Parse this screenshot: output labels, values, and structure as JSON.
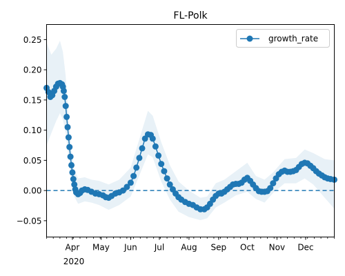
{
  "chart_data": {
    "type": "line",
    "title": "FL-Polk",
    "xlabel": "",
    "ylabel": "",
    "xlim": [
      "2020-03-05",
      "2020-12-31"
    ],
    "ylim": [
      -0.077,
      0.275
    ],
    "year_label": "2020",
    "x_ticks": [
      {
        "date": "2020-04-01",
        "label": "Apr"
      },
      {
        "date": "2020-05-01",
        "label": "May"
      },
      {
        "date": "2020-06-01",
        "label": "Jun"
      },
      {
        "date": "2020-07-01",
        "label": "Jul"
      },
      {
        "date": "2020-08-01",
        "label": "Aug"
      },
      {
        "date": "2020-09-01",
        "label": "Sep"
      },
      {
        "date": "2020-10-01",
        "label": "Oct"
      },
      {
        "date": "2020-11-01",
        "label": "Nov"
      },
      {
        "date": "2020-12-01",
        "label": "Dec"
      }
    ],
    "y_ticks": [
      0.25,
      0.2,
      0.15,
      0.1,
      0.05,
      0.0,
      -0.05
    ],
    "y_tick_labels": [
      "0.25",
      "0.20",
      "0.15",
      "0.10",
      "0.05",
      "0.00",
      "−0.05"
    ],
    "reference_line": {
      "y": 0.0,
      "style": "dashed",
      "color": "#1f77b4"
    },
    "legend": {
      "position": "top-right",
      "entries": [
        "growth_rate"
      ]
    },
    "series": [
      {
        "name": "growth_rate",
        "color": "#1f77b4",
        "marker": "circle",
        "points": [
          [
            "2020-03-05",
            0.17
          ],
          [
            "2020-03-07",
            0.163
          ],
          [
            "2020-03-09",
            0.155
          ],
          [
            "2020-03-11",
            0.158
          ],
          [
            "2020-03-13",
            0.165
          ],
          [
            "2020-03-15",
            0.172
          ],
          [
            "2020-03-17",
            0.177
          ],
          [
            "2020-03-19",
            0.178
          ],
          [
            "2020-03-21",
            0.176
          ],
          [
            "2020-03-22",
            0.172
          ],
          [
            "2020-03-23",
            0.165
          ],
          [
            "2020-03-24",
            0.155
          ],
          [
            "2020-03-25",
            0.14
          ],
          [
            "2020-03-26",
            0.122
          ],
          [
            "2020-03-27",
            0.105
          ],
          [
            "2020-03-28",
            0.088
          ],
          [
            "2020-03-29",
            0.072
          ],
          [
            "2020-03-30",
            0.056
          ],
          [
            "2020-03-31",
            0.042
          ],
          [
            "2020-04-01",
            0.03
          ],
          [
            "2020-04-02",
            0.019
          ],
          [
            "2020-04-03",
            0.01
          ],
          [
            "2020-04-04",
            0.002
          ],
          [
            "2020-04-05",
            -0.003
          ],
          [
            "2020-04-07",
            -0.006
          ],
          [
            "2020-04-09",
            -0.004
          ],
          [
            "2020-04-11",
            0.0
          ],
          [
            "2020-04-14",
            0.002
          ],
          [
            "2020-04-17",
            0.001
          ],
          [
            "2020-04-21",
            -0.002
          ],
          [
            "2020-04-25",
            -0.005
          ],
          [
            "2020-04-29",
            -0.006
          ],
          [
            "2020-05-03",
            -0.008
          ],
          [
            "2020-05-06",
            -0.011
          ],
          [
            "2020-05-09",
            -0.012
          ],
          [
            "2020-05-12",
            -0.009
          ],
          [
            "2020-05-16",
            -0.005
          ],
          [
            "2020-05-20",
            -0.003
          ],
          [
            "2020-05-24",
            0.0
          ],
          [
            "2020-05-28",
            0.006
          ],
          [
            "2020-06-01",
            0.013
          ],
          [
            "2020-06-04",
            0.024
          ],
          [
            "2020-06-07",
            0.038
          ],
          [
            "2020-06-10",
            0.054
          ],
          [
            "2020-06-13",
            0.07
          ],
          [
            "2020-06-16",
            0.086
          ],
          [
            "2020-06-19",
            0.093
          ],
          [
            "2020-06-22",
            0.092
          ],
          [
            "2020-06-24",
            0.086
          ],
          [
            "2020-06-27",
            0.073
          ],
          [
            "2020-06-30",
            0.058
          ],
          [
            "2020-07-03",
            0.044
          ],
          [
            "2020-07-06",
            0.032
          ],
          [
            "2020-07-09",
            0.02
          ],
          [
            "2020-07-12",
            0.01
          ],
          [
            "2020-07-15",
            0.002
          ],
          [
            "2020-07-18",
            -0.005
          ],
          [
            "2020-07-21",
            -0.011
          ],
          [
            "2020-07-24",
            -0.015
          ],
          [
            "2020-07-28",
            -0.019
          ],
          [
            "2020-08-01",
            -0.022
          ],
          [
            "2020-08-05",
            -0.024
          ],
          [
            "2020-08-09",
            -0.028
          ],
          [
            "2020-08-13",
            -0.031
          ],
          [
            "2020-08-17",
            -0.031
          ],
          [
            "2020-08-20",
            -0.028
          ],
          [
            "2020-08-23",
            -0.022
          ],
          [
            "2020-08-26",
            -0.015
          ],
          [
            "2020-08-29",
            -0.009
          ],
          [
            "2020-09-01",
            -0.005
          ],
          [
            "2020-09-04",
            -0.005
          ],
          [
            "2020-09-07",
            -0.002
          ],
          [
            "2020-09-10",
            0.002
          ],
          [
            "2020-09-13",
            0.006
          ],
          [
            "2020-09-16",
            0.01
          ],
          [
            "2020-09-19",
            0.011
          ],
          [
            "2020-09-22",
            0.011
          ],
          [
            "2020-09-25",
            0.013
          ],
          [
            "2020-09-28",
            0.018
          ],
          [
            "2020-10-01",
            0.021
          ],
          [
            "2020-10-04",
            0.016
          ],
          [
            "2020-10-07",
            0.01
          ],
          [
            "2020-10-10",
            0.004
          ],
          [
            "2020-10-13",
            -0.001
          ],
          [
            "2020-10-16",
            -0.002
          ],
          [
            "2020-10-19",
            -0.002
          ],
          [
            "2020-10-22",
            -0.001
          ],
          [
            "2020-10-25",
            0.004
          ],
          [
            "2020-10-28",
            0.012
          ],
          [
            "2020-10-31",
            0.02
          ],
          [
            "2020-11-03",
            0.027
          ],
          [
            "2020-11-06",
            0.031
          ],
          [
            "2020-11-09",
            0.033
          ],
          [
            "2020-11-12",
            0.031
          ],
          [
            "2020-11-15",
            0.031
          ],
          [
            "2020-11-18",
            0.032
          ],
          [
            "2020-11-21",
            0.034
          ],
          [
            "2020-11-24",
            0.039
          ],
          [
            "2020-11-27",
            0.044
          ],
          [
            "2020-11-30",
            0.046
          ],
          [
            "2020-12-03",
            0.045
          ],
          [
            "2020-12-06",
            0.041
          ],
          [
            "2020-12-09",
            0.037
          ],
          [
            "2020-12-12",
            0.032
          ],
          [
            "2020-12-15",
            0.028
          ],
          [
            "2020-12-18",
            0.025
          ],
          [
            "2020-12-21",
            0.022
          ],
          [
            "2020-12-24",
            0.02
          ],
          [
            "2020-12-27",
            0.019
          ],
          [
            "2020-12-31",
            0.018
          ]
        ],
        "band": [
          [
            "2020-03-05",
            0.075,
            0.245
          ],
          [
            "2020-03-10",
            0.095,
            0.225
          ],
          [
            "2020-03-15",
            0.115,
            0.235
          ],
          [
            "2020-03-19",
            0.128,
            0.248
          ],
          [
            "2020-03-22",
            0.118,
            0.23
          ],
          [
            "2020-03-25",
            0.095,
            0.19
          ],
          [
            "2020-03-28",
            0.055,
            0.12
          ],
          [
            "2020-03-31",
            0.02,
            0.07
          ],
          [
            "2020-04-03",
            -0.01,
            0.035
          ],
          [
            "2020-04-07",
            -0.022,
            0.02
          ],
          [
            "2020-04-14",
            -0.018,
            0.022
          ],
          [
            "2020-04-21",
            -0.02,
            0.018
          ],
          [
            "2020-04-29",
            -0.024,
            0.016
          ],
          [
            "2020-05-09",
            -0.032,
            0.01
          ],
          [
            "2020-05-20",
            -0.024,
            0.018
          ],
          [
            "2020-06-01",
            -0.01,
            0.038
          ],
          [
            "2020-06-10",
            0.025,
            0.085
          ],
          [
            "2020-06-19",
            0.06,
            0.132
          ],
          [
            "2020-06-24",
            0.055,
            0.124
          ],
          [
            "2020-07-03",
            0.015,
            0.08
          ],
          [
            "2020-07-12",
            -0.015,
            0.042
          ],
          [
            "2020-07-21",
            -0.035,
            0.015
          ],
          [
            "2020-08-01",
            -0.044,
            0.0
          ],
          [
            "2020-08-13",
            -0.049,
            -0.012
          ],
          [
            "2020-08-20",
            -0.046,
            -0.01
          ],
          [
            "2020-08-29",
            -0.028,
            0.012
          ],
          [
            "2020-09-07",
            -0.02,
            0.018
          ],
          [
            "2020-09-19",
            -0.008,
            0.032
          ],
          [
            "2020-10-01",
            -0.002,
            0.046
          ],
          [
            "2020-10-10",
            -0.014,
            0.024
          ],
          [
            "2020-10-19",
            -0.02,
            0.018
          ],
          [
            "2020-10-28",
            -0.004,
            0.03
          ],
          [
            "2020-11-09",
            0.012,
            0.052
          ],
          [
            "2020-11-21",
            0.012,
            0.054
          ],
          [
            "2020-11-30",
            0.02,
            0.068
          ],
          [
            "2020-12-09",
            0.01,
            0.062
          ],
          [
            "2020-12-21",
            -0.012,
            0.052
          ],
          [
            "2020-12-31",
            -0.03,
            0.05
          ]
        ]
      }
    ]
  }
}
